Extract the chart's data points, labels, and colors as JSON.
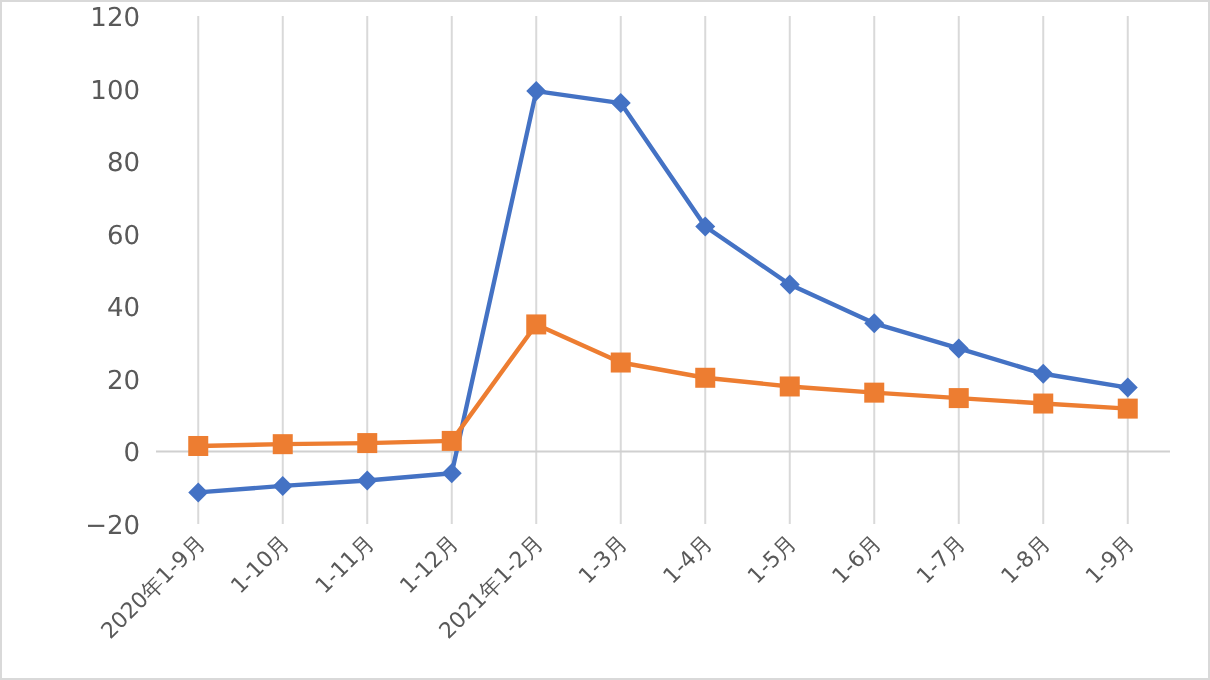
{
  "chart_data": {
    "type": "line",
    "categories": [
      "2020年1-9月",
      "1-10月",
      "1-11月",
      "1-12月",
      "2021年1-2月",
      "1-3月",
      "1-4月",
      "1-5月",
      "1-6月",
      "1-7月",
      "1-8月",
      "1-9月"
    ],
    "series": [
      {
        "color": "#4472c4",
        "marker": "diamond",
        "values": [
          -11.3,
          -9.5,
          -8,
          -6,
          99.3,
          96,
          62,
          46,
          35.3,
          28.4,
          21.4,
          17.6
        ]
      },
      {
        "color": "#ed7d31",
        "marker": "square",
        "values": [
          1.5,
          2,
          2.3,
          2.9,
          35,
          24.5,
          20.3,
          17.9,
          16.2,
          14.7,
          13.2,
          11.8
        ]
      }
    ],
    "ylim": [
      -20,
      120
    ],
    "yticks": [
      -20,
      0,
      20,
      40,
      60,
      80,
      100,
      120
    ],
    "grid": "x",
    "line_style": "solid"
  }
}
